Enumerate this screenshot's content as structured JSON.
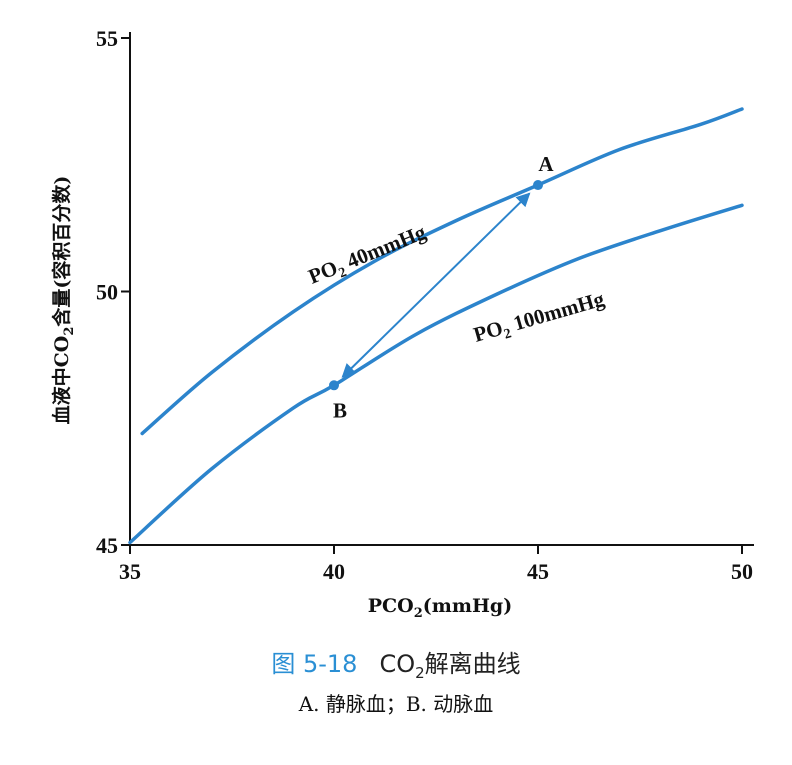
{
  "chart_data": {
    "type": "line",
    "xlabel_main": "PCO",
    "xlabel_sub": "2",
    "xlabel_rest": "(mmHg)",
    "ylabel_main": "血液中CO",
    "ylabel_sub": "2",
    "ylabel_rest": "含量(容积百分数)",
    "xlim": [
      35,
      50
    ],
    "ylim": [
      45,
      55
    ],
    "xticks": [
      "35",
      "40",
      "45",
      "50"
    ],
    "yticks": [
      "45",
      "50",
      "55"
    ],
    "line_color": "#2c84cc",
    "series": [
      {
        "name_main": "PO",
        "name_sub": "2",
        "name_rest": " 40mmHg",
        "x": [
          35.3,
          37.0,
          39.0,
          41.0,
          43.0,
          45.0,
          47.0,
          49.0,
          50.0
        ],
        "y": [
          47.2,
          48.4,
          49.6,
          50.6,
          51.4,
          52.1,
          52.8,
          53.3,
          53.6
        ]
      },
      {
        "name_main": "PO",
        "name_sub": "2",
        "name_rest": " 100mmHg",
        "x": [
          35.0,
          37.0,
          39.0,
          40.0,
          42.0,
          44.0,
          46.0,
          48.0,
          50.0
        ],
        "y": [
          45.05,
          46.5,
          47.7,
          48.15,
          49.15,
          49.95,
          50.65,
          51.2,
          51.7
        ]
      }
    ],
    "points": [
      {
        "label": "A",
        "x": 45.0,
        "y": 52.1
      },
      {
        "label": "B",
        "x": 40.0,
        "y": 48.15
      }
    ]
  },
  "caption": {
    "figure_number": "图 5-18",
    "title_main": "CO",
    "title_sub": "2",
    "title_rest": "解离曲线",
    "subtitle": "A. 静脉血；B. 动脉血"
  }
}
